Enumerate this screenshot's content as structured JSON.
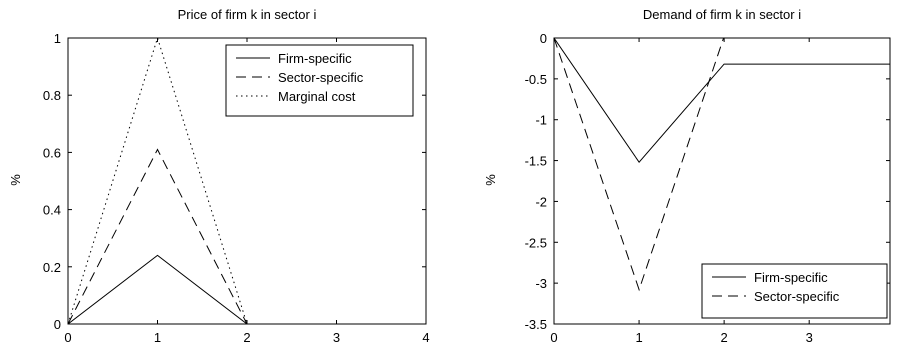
{
  "chart_data": [
    {
      "type": "line",
      "title": "Price of firm k in sector i",
      "xlabel": "",
      "ylabel": "%",
      "xlim": [
        0,
        4
      ],
      "ylim": [
        0,
        1
      ],
      "xticks": [
        "0",
        "1",
        "2",
        "3",
        "4"
      ],
      "yticks": [
        "0",
        "0.2",
        "0.4",
        "0.6",
        "0.8",
        "1"
      ],
      "grid": false,
      "legend_position": "top-right",
      "series": [
        {
          "name": "Firm-specific",
          "style": "solid",
          "x": [
            0,
            1,
            2,
            3,
            4
          ],
          "y": [
            0,
            0.24,
            0,
            0,
            0
          ]
        },
        {
          "name": "Sector-specific",
          "style": "dashed",
          "x": [
            0,
            1,
            2,
            3,
            4
          ],
          "y": [
            0,
            0.61,
            0,
            0,
            0
          ]
        },
        {
          "name": "Marginal cost",
          "style": "dotted",
          "x": [
            0,
            1,
            2,
            3,
            4
          ],
          "y": [
            0,
            1.0,
            0,
            0,
            0
          ]
        }
      ]
    },
    {
      "type": "line",
      "title": "Demand of firm k in sector i",
      "xlabel": "",
      "ylabel": "%",
      "xlim": [
        0,
        3.95
      ],
      "ylim": [
        -3.5,
        0
      ],
      "xticks": [
        "0",
        "1",
        "2",
        "3"
      ],
      "yticks": [
        "0",
        "-0.5",
        "-1",
        "-1.5",
        "-2",
        "-2.5",
        "-3",
        "-3.5"
      ],
      "grid": false,
      "legend_position": "bottom-right",
      "series": [
        {
          "name": "Firm-specific",
          "style": "solid",
          "x": [
            0,
            1,
            2,
            3,
            3.95
          ],
          "y": [
            0,
            -1.52,
            -0.32,
            -0.32,
            -0.32
          ]
        },
        {
          "name": "Sector-specific",
          "style": "dashed",
          "x": [
            0,
            1,
            2,
            3,
            3.95
          ],
          "y": [
            0,
            -3.08,
            0.02,
            0.02,
            0.02
          ]
        }
      ]
    }
  ]
}
